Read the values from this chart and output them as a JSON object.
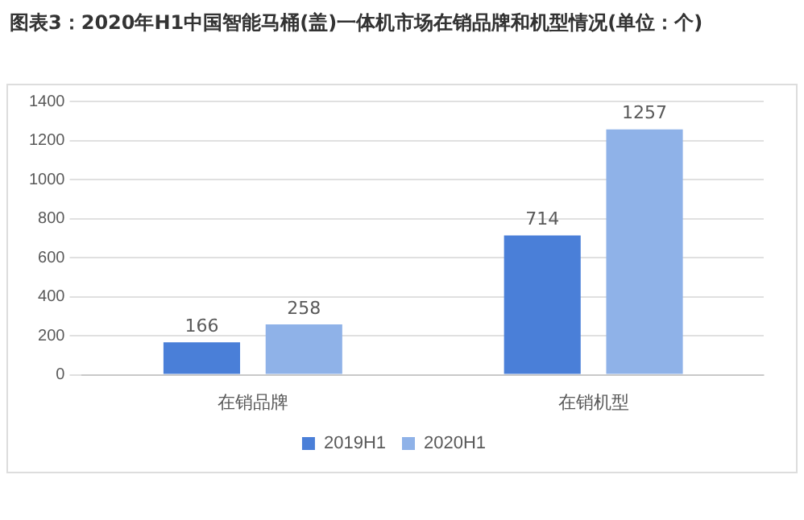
{
  "chart_data": {
    "type": "bar",
    "title": "图表3：2020年H1中国智能马桶(盖)一体机市场在销品牌和机型情况(单位：个)",
    "categories": [
      "在销品牌",
      "在销机型"
    ],
    "series": [
      {
        "name": "2019H1",
        "color": "#4a7fd8",
        "values": [
          166,
          714
        ]
      },
      {
        "name": "2020H1",
        "color": "#8fb2e8",
        "values": [
          258,
          1257
        ]
      }
    ],
    "ylim": [
      0,
      1400
    ],
    "yticks": [
      0,
      200,
      400,
      600,
      800,
      1000,
      1200,
      1400
    ],
    "grid": "y",
    "legend": "bottom",
    "data_labels": true
  }
}
